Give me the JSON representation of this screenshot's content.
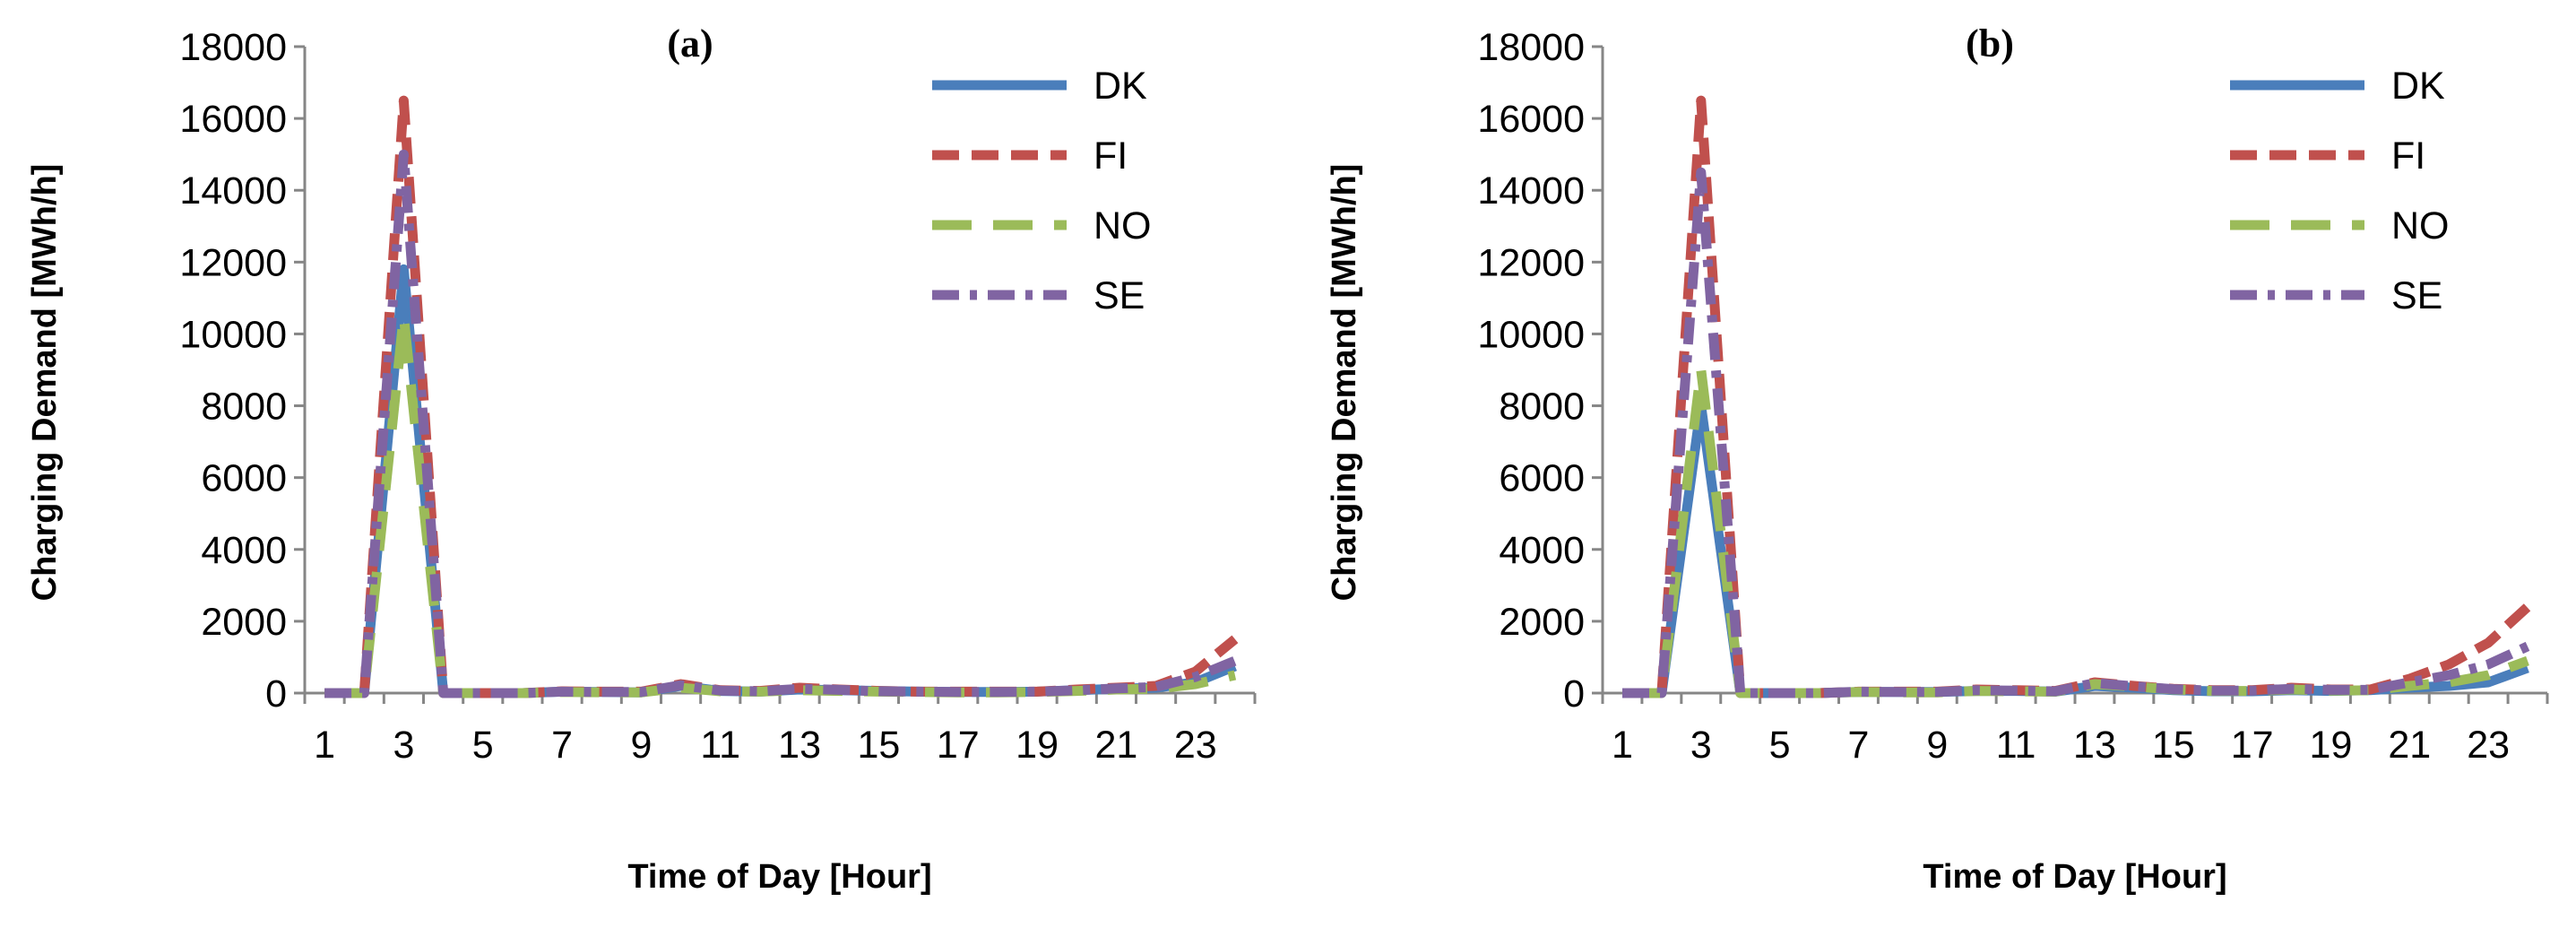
{
  "chart_data": [
    {
      "type": "line",
      "title": "(a)",
      "xlabel": "Time of Day [Hour]",
      "ylabel": "Charging Demand [MWh/h]",
      "ylim": [
        0,
        18000
      ],
      "yticks": [
        "0",
        "2000",
        "4000",
        "6000",
        "8000",
        "10000",
        "12000",
        "14000",
        "16000",
        "18000"
      ],
      "xticks": [
        "1",
        "3",
        "5",
        "7",
        "9",
        "11",
        "13",
        "15",
        "17",
        "19",
        "21",
        "23"
      ],
      "x": [
        1,
        2,
        3,
        4,
        5,
        6,
        7,
        8,
        9,
        10,
        11,
        12,
        13,
        14,
        15,
        16,
        17,
        18,
        19,
        20,
        21,
        22,
        23,
        24
      ],
      "legend_position": "top-right",
      "series": [
        {
          "name": "DK",
          "color": "#4a7ebb",
          "dash": "solid",
          "values": [
            0,
            0,
            11800,
            0,
            0,
            0,
            40,
            30,
            20,
            200,
            60,
            40,
            100,
            80,
            60,
            40,
            30,
            30,
            40,
            80,
            120,
            150,
            300,
            750
          ]
        },
        {
          "name": "FI",
          "color": "#c0504d",
          "dash": "dash",
          "values": [
            0,
            0,
            16500,
            0,
            0,
            0,
            50,
            40,
            40,
            250,
            80,
            60,
            150,
            100,
            60,
            40,
            40,
            40,
            40,
            100,
            150,
            200,
            600,
            1500
          ]
        },
        {
          "name": "NO",
          "color": "#9bbb59",
          "dash": "longdash",
          "values": [
            0,
            0,
            10500,
            0,
            0,
            0,
            30,
            20,
            20,
            150,
            50,
            40,
            80,
            60,
            40,
            30,
            20,
            20,
            30,
            60,
            100,
            120,
            250,
            500
          ]
        },
        {
          "name": "SE",
          "color": "#8064a2",
          "dash": "dashdot",
          "values": [
            0,
            0,
            15000,
            0,
            0,
            0,
            40,
            30,
            30,
            220,
            70,
            50,
            120,
            90,
            50,
            40,
            30,
            30,
            40,
            80,
            130,
            170,
            450,
            900
          ]
        }
      ]
    },
    {
      "type": "line",
      "title": "(b)",
      "xlabel": "Time of Day [Hour]",
      "ylabel": "Charging Demand [MWh/h]",
      "ylim": [
        0,
        18000
      ],
      "yticks": [
        "0",
        "2000",
        "4000",
        "6000",
        "8000",
        "10000",
        "12000",
        "14000",
        "16000",
        "18000"
      ],
      "xticks": [
        "1",
        "3",
        "5",
        "7",
        "9",
        "11",
        "13",
        "15",
        "17",
        "19",
        "21",
        "23"
      ],
      "x": [
        1,
        2,
        3,
        4,
        5,
        6,
        7,
        8,
        9,
        10,
        11,
        12,
        13,
        14,
        15,
        16,
        17,
        18,
        19,
        20,
        21,
        22,
        23,
        24
      ],
      "legend_position": "top-right",
      "series": [
        {
          "name": "DK",
          "color": "#4a7ebb",
          "dash": "solid",
          "values": [
            0,
            0,
            8000,
            0,
            0,
            0,
            30,
            30,
            30,
            60,
            60,
            40,
            200,
            150,
            80,
            50,
            50,
            80,
            60,
            80,
            150,
            200,
            300,
            700
          ]
        },
        {
          "name": "FI",
          "color": "#c0504d",
          "dash": "dash",
          "values": [
            0,
            0,
            16500,
            0,
            0,
            0,
            40,
            40,
            40,
            100,
            80,
            60,
            300,
            200,
            120,
            80,
            80,
            150,
            100,
            100,
            400,
            800,
            1400,
            2400
          ]
        },
        {
          "name": "NO",
          "color": "#9bbb59",
          "dash": "longdash",
          "values": [
            0,
            0,
            9000,
            0,
            0,
            0,
            30,
            20,
            20,
            60,
            50,
            40,
            250,
            180,
            100,
            60,
            60,
            100,
            70,
            80,
            200,
            300,
            500,
            900
          ]
        },
        {
          "name": "SE",
          "color": "#8064a2",
          "dash": "dashdot",
          "values": [
            0,
            0,
            14500,
            0,
            0,
            0,
            40,
            30,
            30,
            80,
            70,
            50,
            280,
            190,
            110,
            70,
            70,
            120,
            90,
            90,
            300,
            500,
            800,
            1300
          ]
        }
      ]
    }
  ]
}
